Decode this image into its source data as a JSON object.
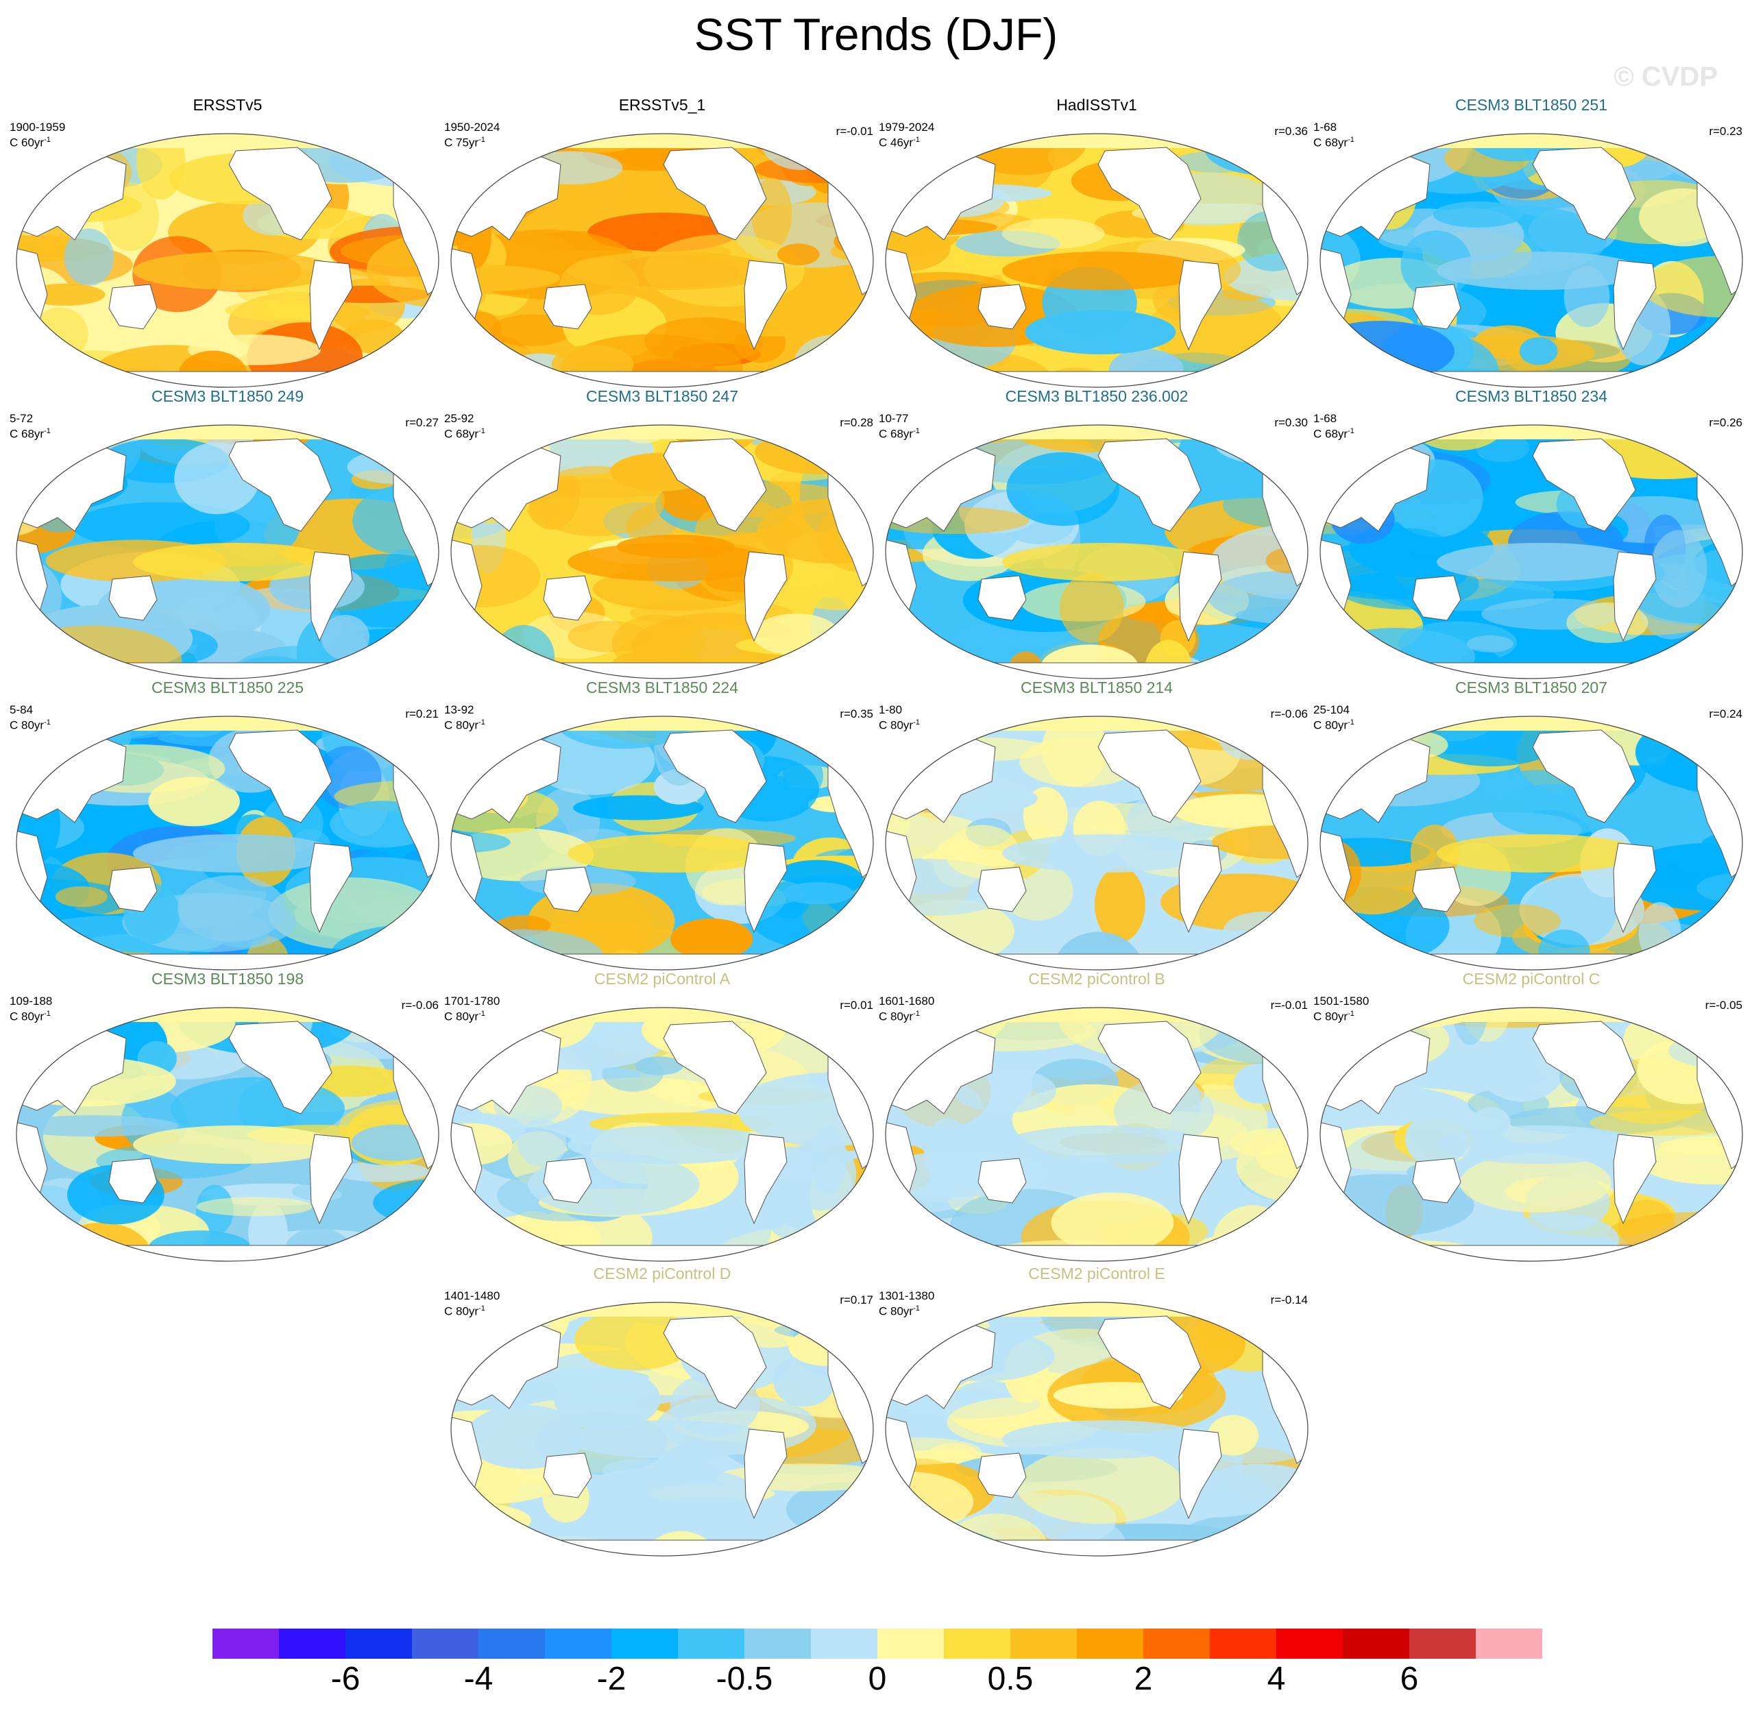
{
  "title": "SST Trends (DJF)",
  "watermark": "© CVDP",
  "colors": {
    "obs_title": "#000000",
    "cesm3_blue_title": "#1f6e8c",
    "cesm3_green_title": "#5a8a5a",
    "cesm2_title": "#c8c080"
  },
  "panels": [
    {
      "title": "ERSSTv5",
      "group": "obs",
      "period": "1900-1959",
      "units": "C 60yr",
      "corr": "",
      "pattern": "warm"
    },
    {
      "title": "ERSSTv5_1",
      "group": "obs",
      "period": "1950-2024",
      "units": "C 75yr",
      "corr": "r=-0.01",
      "pattern": "warm_strong"
    },
    {
      "title": "HadISSTv1",
      "group": "obs",
      "period": "1979-2024",
      "units": "C 46yr",
      "corr": "r=0.36",
      "pattern": "warm_mixed"
    },
    {
      "title": "CESM3 BLT1850 251",
      "group": "cesm3_blue",
      "period": "1-68",
      "units": "C 68yr",
      "corr": "r=0.23",
      "pattern": "cool"
    },
    {
      "title": "CESM3 BLT1850 249",
      "group": "cesm3_blue",
      "period": "5-72",
      "units": "C 68yr",
      "corr": "r=0.27",
      "pattern": "cool_mixed"
    },
    {
      "title": "CESM3 BLT1850 247",
      "group": "cesm3_blue",
      "period": "25-92",
      "units": "C 68yr",
      "corr": "r=0.28",
      "pattern": "warm_mixed"
    },
    {
      "title": "CESM3 BLT1850 236.002",
      "group": "cesm3_blue",
      "period": "10-77",
      "units": "C 68yr",
      "corr": "r=0.30",
      "pattern": "cool_mixed"
    },
    {
      "title": "CESM3 BLT1850 234",
      "group": "cesm3_blue",
      "period": "1-68",
      "units": "C 68yr",
      "corr": "r=0.26",
      "pattern": "cool"
    },
    {
      "title": "CESM3 BLT1850 225",
      "group": "cesm3_green",
      "period": "5-84",
      "units": "C 80yr",
      "corr": "r=0.21",
      "pattern": "cool"
    },
    {
      "title": "CESM3 BLT1850 224",
      "group": "cesm3_green",
      "period": "13-92",
      "units": "C 80yr",
      "corr": "r=0.35",
      "pattern": "cool_mixed"
    },
    {
      "title": "CESM3 BLT1850 214",
      "group": "cesm3_green",
      "period": "1-80",
      "units": "C 80yr",
      "corr": "r=-0.06",
      "pattern": "neutral"
    },
    {
      "title": "CESM3 BLT1850 207",
      "group": "cesm3_green",
      "period": "25-104",
      "units": "C 80yr",
      "corr": "r=0.24",
      "pattern": "cool_mixed"
    },
    {
      "title": "CESM3 BLT1850 198",
      "group": "cesm3_green",
      "period": "109-188",
      "units": "C 80yr",
      "corr": "r=-0.06",
      "pattern": "neutral_cool"
    },
    {
      "title": "CESM2 piControl A",
      "group": "cesm2",
      "period": "1701-1780",
      "units": "C 80yr",
      "corr": "r=0.01",
      "pattern": "neutral"
    },
    {
      "title": "CESM2 piControl B",
      "group": "cesm2",
      "period": "1601-1680",
      "units": "C 80yr",
      "corr": "r=-0.01",
      "pattern": "neutral"
    },
    {
      "title": "CESM2 piControl C",
      "group": "cesm2",
      "period": "1501-1580",
      "units": "C 80yr",
      "corr": "r=-0.05",
      "pattern": "neutral"
    },
    {
      "title": "CESM2 piControl D",
      "group": "cesm2",
      "period": "1401-1480",
      "units": "C 80yr",
      "corr": "r=0.17",
      "pattern": "neutral"
    },
    {
      "title": "CESM2 piControl E",
      "group": "cesm2",
      "period": "1301-1380",
      "units": "C 80yr",
      "corr": "r=-0.14",
      "pattern": "neutral"
    }
  ],
  "chart_data": {
    "type": "heatmap",
    "title": "SST Trends (DJF)",
    "colorbar": {
      "colors": [
        "#8020f0",
        "#3010ff",
        "#1030f0",
        "#3c60e0",
        "#2a78ee",
        "#1e90ff",
        "#00b2ff",
        "#40c4f8",
        "#8cd0f0",
        "#bce4f8",
        "#fff8a0",
        "#fde040",
        "#fcc020",
        "#fca000",
        "#fc6a00",
        "#fc3000",
        "#f00000",
        "#d00000",
        "#d03838",
        "#fcacb4"
      ],
      "tick_labels": [
        "-6",
        "-4",
        "-2",
        "-0.5",
        "0",
        "0.5",
        "2",
        "4",
        "6"
      ]
    }
  }
}
